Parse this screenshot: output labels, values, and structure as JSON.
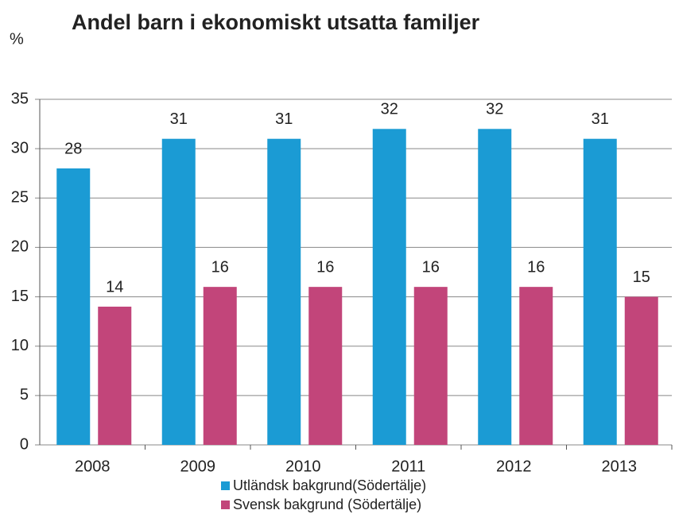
{
  "chart_data": {
    "type": "bar",
    "title": "Andel barn i ekonomiskt utsatta familjer",
    "y_label": "%",
    "categories": [
      "2008",
      "2009",
      "2010",
      "2011",
      "2012",
      "2013"
    ],
    "series": [
      {
        "name": "Utländsk bakgrund(Södertälje)",
        "color": "#1b9bd4",
        "values": [
          28,
          31,
          31,
          32,
          32,
          31
        ]
      },
      {
        "name": "Svensk bakgrund (Södertälje)",
        "color": "#c2457a",
        "values": [
          14,
          16,
          16,
          16,
          16,
          15
        ]
      }
    ],
    "ylim": [
      0,
      35
    ],
    "yticks": [
      0,
      5,
      10,
      15,
      20,
      25,
      30,
      35
    ],
    "grid": true,
    "legend": "bottom"
  }
}
